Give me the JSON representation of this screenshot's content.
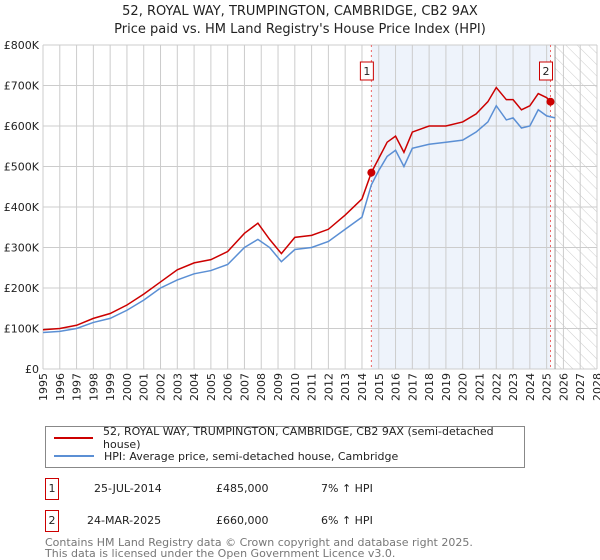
{
  "title": "52, ROYAL WAY, TRUMPINGTON, CAMBRIDGE, CB2 9AX",
  "subtitle": "Price paid vs. HM Land Registry's House Price Index (HPI)",
  "chart_data": {
    "type": "line",
    "xlim": [
      1995,
      2028
    ],
    "ylim": [
      0,
      800000
    ],
    "yticks": [
      0,
      100000,
      200000,
      300000,
      400000,
      500000,
      600000,
      700000,
      800000
    ],
    "ytick_labels": [
      "£0",
      "£100K",
      "£200K",
      "£300K",
      "£400K",
      "£500K",
      "£600K",
      "£700K",
      "£800K"
    ],
    "xticks": [
      1995,
      1996,
      1997,
      1998,
      1999,
      2000,
      2001,
      2002,
      2003,
      2004,
      2005,
      2006,
      2007,
      2008,
      2009,
      2010,
      2011,
      2012,
      2013,
      2014,
      2015,
      2016,
      2017,
      2018,
      2019,
      2020,
      2021,
      2022,
      2023,
      2024,
      2025,
      2026,
      2027,
      2028
    ],
    "shaded_range": [
      2014.56,
      2025.23
    ],
    "forecast_hatch_from": 2025.5,
    "series": [
      {
        "name": "52, ROYAL WAY, TRUMPINGTON, CAMBRIDGE, CB2 9AX (semi-detached house)",
        "color": "#cc0000",
        "x": [
          1995,
          1996,
          1997,
          1998,
          1999,
          2000,
          2001,
          2002,
          2003,
          2004,
          2005,
          2006,
          2007,
          2007.8,
          2008.5,
          2009.2,
          2010,
          2011,
          2012,
          2013,
          2014,
          2014.56,
          2015,
          2015.5,
          2016,
          2016.5,
          2017,
          2018,
          2019,
          2020,
          2020.8,
          2021.5,
          2022,
          2022.6,
          2023,
          2023.5,
          2024,
          2024.5,
          2025,
          2025.23
        ],
        "y": [
          97000,
          100000,
          108000,
          125000,
          137000,
          158000,
          185000,
          215000,
          245000,
          262000,
          270000,
          290000,
          335000,
          360000,
          320000,
          285000,
          325000,
          330000,
          345000,
          380000,
          420000,
          485000,
          520000,
          560000,
          575000,
          535000,
          585000,
          600000,
          600000,
          610000,
          630000,
          660000,
          695000,
          665000,
          665000,
          640000,
          650000,
          680000,
          670000,
          660000
        ]
      },
      {
        "name": "HPI: Average price, semi-detached house, Cambridge",
        "color": "#5b8fd4",
        "x": [
          1995,
          1996,
          1997,
          1998,
          1999,
          2000,
          2001,
          2002,
          2003,
          2004,
          2005,
          2006,
          2007,
          2007.8,
          2008.5,
          2009.2,
          2010,
          2011,
          2012,
          2013,
          2014,
          2014.56,
          2015,
          2015.5,
          2016,
          2016.5,
          2017,
          2018,
          2019,
          2020,
          2020.8,
          2021.5,
          2022,
          2022.6,
          2023,
          2023.5,
          2024,
          2024.5,
          2025,
          2025.5
        ],
        "y": [
          90000,
          93000,
          100000,
          115000,
          125000,
          145000,
          170000,
          200000,
          220000,
          235000,
          243000,
          258000,
          300000,
          320000,
          300000,
          265000,
          295000,
          300000,
          315000,
          345000,
          375000,
          455000,
          490000,
          525000,
          540000,
          500000,
          545000,
          555000,
          560000,
          565000,
          585000,
          610000,
          650000,
          615000,
          620000,
          595000,
          600000,
          640000,
          625000,
          620000
        ]
      }
    ],
    "sales": [
      {
        "label": "1",
        "x": 2014.56,
        "y": 485000
      },
      {
        "label": "2",
        "x": 2025.23,
        "y": 660000
      }
    ]
  },
  "legend": {
    "property": "52, ROYAL WAY, TRUMPINGTON, CAMBRIDGE, CB2 9AX (semi-detached house)",
    "hpi": "HPI: Average price, semi-detached house, Cambridge"
  },
  "transactions": [
    {
      "num": "1",
      "date": "25-JUL-2014",
      "price": "£485,000",
      "hpi": "7% ↑ HPI"
    },
    {
      "num": "2",
      "date": "24-MAR-2025",
      "price": "£660,000",
      "hpi": "6% ↑ HPI"
    }
  ],
  "footer": {
    "line1": "Contains HM Land Registry data © Crown copyright and database right 2025.",
    "line2": "This data is licensed under the Open Government Licence v3.0."
  }
}
